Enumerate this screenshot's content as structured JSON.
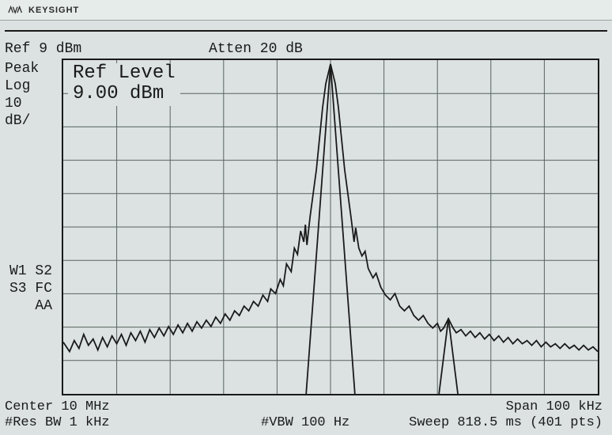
{
  "brand": "KEYSIGHT",
  "header": {
    "ref": "Ref 9 dBm",
    "atten": "Atten 20 dB"
  },
  "left_labels": {
    "l1": "Peak",
    "l2": "Log",
    "l3": "10",
    "l4": "dB/"
  },
  "indicators": {
    "i1": "W1 S2",
    "i2": "S3 FC",
    "i3": "AA"
  },
  "overlay": {
    "line1": "Ref Level",
    "line2": "9.00 dBm"
  },
  "footer": {
    "center": "Center 10 MHz",
    "span": "Span 100 kHz",
    "rbw": "#Res BW 1 kHz",
    "vbw": "#VBW 100 Hz",
    "sweep": "Sweep 818.5 ms (401 pts)"
  },
  "chart": {
    "type": "line",
    "grid_cols": 10,
    "grid_rows": 10,
    "grid_color": "#5a6361",
    "trace_color": "#1a1a1a",
    "background_color": "#dbe2e1",
    "xlim": [
      0,
      680
    ],
    "ylim": [
      0,
      426
    ],
    "main_peak_x": 340,
    "spur_x": 490,
    "noise_floor_y": 355,
    "peak_y": 5,
    "spur_peak_y": 330,
    "trace_points": [
      [
        0,
        360
      ],
      [
        8,
        372
      ],
      [
        14,
        358
      ],
      [
        20,
        368
      ],
      [
        26,
        350
      ],
      [
        32,
        364
      ],
      [
        38,
        356
      ],
      [
        44,
        370
      ],
      [
        50,
        354
      ],
      [
        56,
        366
      ],
      [
        62,
        352
      ],
      [
        68,
        362
      ],
      [
        74,
        350
      ],
      [
        80,
        364
      ],
      [
        86,
        348
      ],
      [
        92,
        358
      ],
      [
        98,
        346
      ],
      [
        104,
        360
      ],
      [
        110,
        344
      ],
      [
        116,
        354
      ],
      [
        122,
        342
      ],
      [
        128,
        352
      ],
      [
        134,
        340
      ],
      [
        140,
        350
      ],
      [
        146,
        338
      ],
      [
        152,
        348
      ],
      [
        158,
        336
      ],
      [
        164,
        346
      ],
      [
        170,
        334
      ],
      [
        176,
        342
      ],
      [
        182,
        332
      ],
      [
        188,
        340
      ],
      [
        194,
        328
      ],
      [
        200,
        336
      ],
      [
        206,
        324
      ],
      [
        212,
        332
      ],
      [
        218,
        320
      ],
      [
        224,
        326
      ],
      [
        230,
        314
      ],
      [
        236,
        320
      ],
      [
        242,
        308
      ],
      [
        248,
        314
      ],
      [
        254,
        300
      ],
      [
        260,
        308
      ],
      [
        264,
        292
      ],
      [
        270,
        298
      ],
      [
        276,
        280
      ],
      [
        280,
        288
      ],
      [
        284,
        260
      ],
      [
        290,
        270
      ],
      [
        294,
        240
      ],
      [
        298,
        248
      ],
      [
        302,
        218
      ],
      [
        306,
        232
      ],
      [
        308,
        210
      ],
      [
        310,
        236
      ],
      [
        314,
        200
      ],
      [
        318,
        170
      ],
      [
        322,
        140
      ],
      [
        326,
        100
      ],
      [
        330,
        60
      ],
      [
        334,
        30
      ],
      [
        340,
        5
      ],
      [
        346,
        30
      ],
      [
        350,
        60
      ],
      [
        354,
        100
      ],
      [
        358,
        140
      ],
      [
        362,
        170
      ],
      [
        366,
        200
      ],
      [
        370,
        232
      ],
      [
        372,
        214
      ],
      [
        376,
        240
      ],
      [
        380,
        250
      ],
      [
        384,
        244
      ],
      [
        388,
        266
      ],
      [
        394,
        278
      ],
      [
        398,
        272
      ],
      [
        404,
        290
      ],
      [
        410,
        300
      ],
      [
        416,
        306
      ],
      [
        422,
        298
      ],
      [
        428,
        314
      ],
      [
        434,
        320
      ],
      [
        440,
        314
      ],
      [
        446,
        326
      ],
      [
        452,
        332
      ],
      [
        458,
        326
      ],
      [
        464,
        336
      ],
      [
        470,
        342
      ],
      [
        476,
        336
      ],
      [
        480,
        346
      ],
      [
        484,
        342
      ],
      [
        487,
        336
      ],
      [
        490,
        330
      ],
      [
        493,
        336
      ],
      [
        496,
        342
      ],
      [
        500,
        348
      ],
      [
        506,
        344
      ],
      [
        512,
        352
      ],
      [
        518,
        346
      ],
      [
        524,
        354
      ],
      [
        530,
        348
      ],
      [
        536,
        356
      ],
      [
        542,
        350
      ],
      [
        548,
        358
      ],
      [
        554,
        352
      ],
      [
        560,
        360
      ],
      [
        566,
        354
      ],
      [
        572,
        362
      ],
      [
        578,
        356
      ],
      [
        584,
        362
      ],
      [
        590,
        358
      ],
      [
        596,
        364
      ],
      [
        602,
        358
      ],
      [
        608,
        366
      ],
      [
        614,
        360
      ],
      [
        620,
        366
      ],
      [
        626,
        362
      ],
      [
        632,
        368
      ],
      [
        638,
        362
      ],
      [
        644,
        368
      ],
      [
        650,
        364
      ],
      [
        656,
        370
      ],
      [
        662,
        364
      ],
      [
        668,
        370
      ],
      [
        674,
        366
      ],
      [
        680,
        372
      ]
    ],
    "lo_feedthrough": {
      "apex_x": 340,
      "apex_y": 5,
      "left_base_x": 309,
      "right_base_x": 371,
      "base_y": 426
    },
    "spur_triangle": {
      "apex_x": 490,
      "apex_y": 330,
      "left_base_x": 478,
      "right_base_x": 502,
      "base_y": 426
    }
  }
}
